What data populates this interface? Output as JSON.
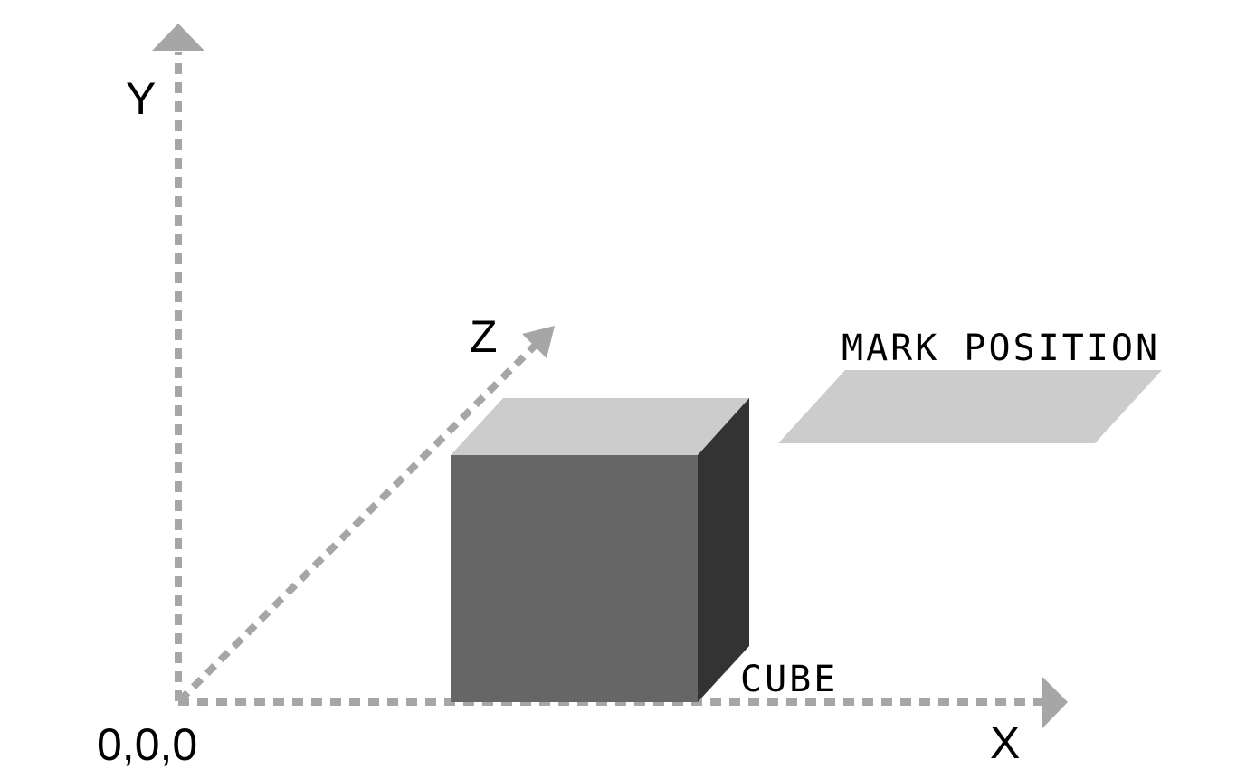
{
  "diagram": {
    "axes": {
      "x_label": "X",
      "y_label": "Y",
      "z_label": "Z",
      "origin_label": "0,0,0"
    },
    "objects": {
      "cube_label": "CUBE",
      "mark_label": "MARK POSITION"
    },
    "colors": {
      "axis": "#a6a6a6",
      "cube_front": "#666666",
      "cube_top": "#cccccc",
      "cube_side": "#333333",
      "mark_plane": "#cccccc",
      "text": "#000000",
      "background": "#ffffff"
    }
  }
}
